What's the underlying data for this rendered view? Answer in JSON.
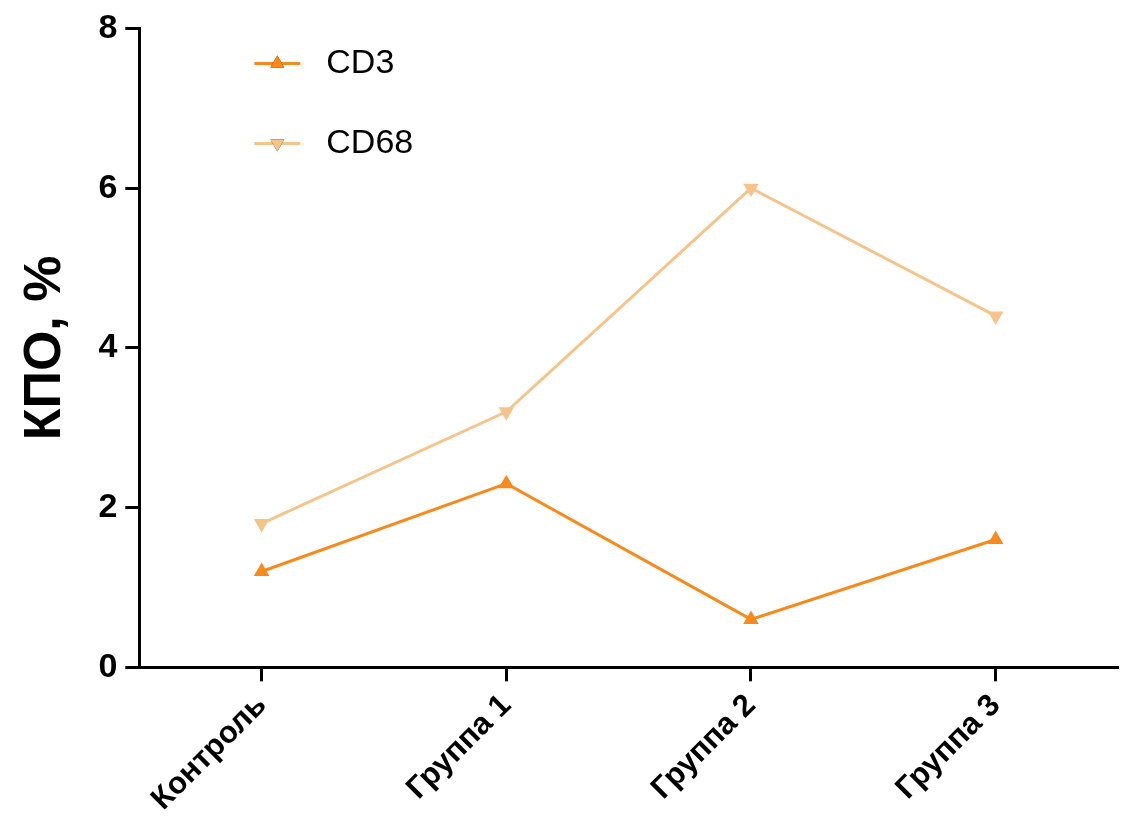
{
  "chart_data": {
    "type": "line",
    "ylabel": "КПО, %",
    "categories": [
      "Контроль",
      "Группа 1",
      "Группа 2",
      "Группа 3"
    ],
    "series": [
      {
        "name": "CD3",
        "color": "#f78a1e",
        "values": [
          1.2,
          2.3,
          0.6,
          1.6
        ]
      },
      {
        "name": "CD68",
        "color": "#f5c48c",
        "values": [
          1.8,
          3.2,
          6.0,
          4.4
        ]
      }
    ],
    "ylim": [
      0,
      8
    ],
    "yticks": [
      0,
      2,
      4,
      6,
      8
    ],
    "grid": false,
    "legend": "top left",
    "marker": "triangle",
    "line_style": "solid"
  }
}
